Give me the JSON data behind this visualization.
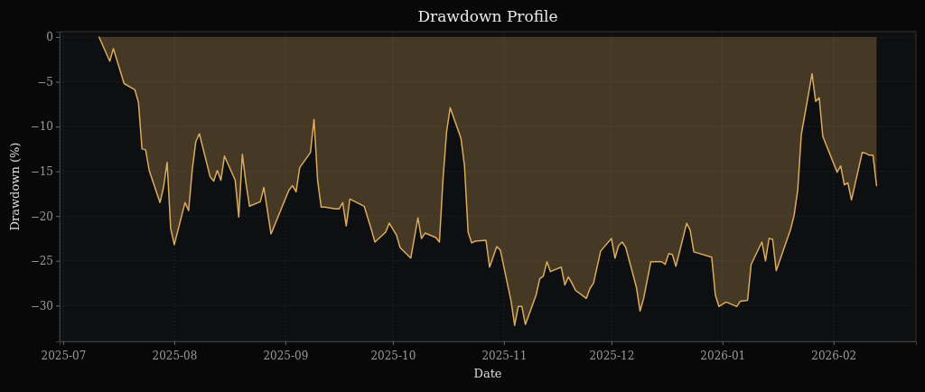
{
  "chart_data": {
    "type": "area",
    "title": "Drawdown Profile",
    "xlabel": "Date",
    "ylabel": "Drawdown (%)",
    "x": [
      "2025-07-11",
      "2025-07-14",
      "2025-07-15",
      "2025-07-18",
      "2025-07-21",
      "2025-07-22",
      "2025-07-23",
      "2025-07-24",
      "2025-07-25",
      "2025-07-28",
      "2025-07-29",
      "2025-07-30",
      "2025-07-31",
      "2025-08-01",
      "2025-08-04",
      "2025-08-05",
      "2025-08-06",
      "2025-08-07",
      "2025-08-08",
      "2025-08-11",
      "2025-08-12",
      "2025-08-13",
      "2025-08-14",
      "2025-08-15",
      "2025-08-18",
      "2025-08-19",
      "2025-08-20",
      "2025-08-21",
      "2025-08-22",
      "2025-08-25",
      "2025-08-26",
      "2025-08-28",
      "2025-09-02",
      "2025-09-03",
      "2025-09-04",
      "2025-09-05",
      "2025-09-08",
      "2025-09-09",
      "2025-09-10",
      "2025-09-11",
      "2025-09-12",
      "2025-09-15",
      "2025-09-16",
      "2025-09-17",
      "2025-09-18",
      "2025-09-19",
      "2025-09-23",
      "2025-09-24",
      "2025-09-25",
      "2025-09-26",
      "2025-09-29",
      "2025-09-30",
      "2025-10-02",
      "2025-10-03",
      "2025-10-06",
      "2025-10-08",
      "2025-10-09",
      "2025-10-10",
      "2025-10-13",
      "2025-10-14",
      "2025-10-15",
      "2025-10-16",
      "2025-10-17",
      "2025-10-20",
      "2025-10-21",
      "2025-10-22",
      "2025-10-23",
      "2025-10-24",
      "2025-10-27",
      "2025-10-28",
      "2025-10-30",
      "2025-10-31",
      "2025-11-03",
      "2025-11-04",
      "2025-11-05",
      "2025-11-06",
      "2025-11-07",
      "2025-11-10",
      "2025-11-11",
      "2025-11-12",
      "2025-11-13",
      "2025-11-14",
      "2025-11-17",
      "2025-11-18",
      "2025-11-19",
      "2025-11-20",
      "2025-11-21",
      "2025-11-24",
      "2025-11-25",
      "2025-11-26",
      "2025-11-28",
      "2025-12-01",
      "2025-12-02",
      "2025-12-03",
      "2025-12-04",
      "2025-12-05",
      "2025-12-08",
      "2025-12-09",
      "2025-12-10",
      "2025-12-12",
      "2025-12-15",
      "2025-12-16",
      "2025-12-17",
      "2025-12-18",
      "2025-12-19",
      "2025-12-22",
      "2025-12-23",
      "2025-12-24",
      "2025-12-29",
      "2025-12-30",
      "2025-12-31",
      "2026-01-02",
      "2026-01-05",
      "2026-01-06",
      "2026-01-08",
      "2026-01-09",
      "2026-01-12",
      "2026-01-13",
      "2026-01-14",
      "2026-01-15",
      "2026-01-16",
      "2026-01-20",
      "2026-01-21",
      "2026-01-22",
      "2026-01-23",
      "2026-01-26",
      "2026-01-27",
      "2026-01-28",
      "2026-01-29",
      "2026-02-02",
      "2026-02-03",
      "2026-02-04",
      "2026-02-05",
      "2026-02-06",
      "2026-02-09",
      "2026-02-10",
      "2026-02-11",
      "2026-02-12",
      "2026-02-13"
    ],
    "values": [
      0,
      -2.7,
      -1.3,
      -5.2,
      -5.9,
      -7.3,
      -12.5,
      -12.6,
      -14.9,
      -18.5,
      -16.8,
      -14.0,
      -21.4,
      -23.2,
      -18.5,
      -19.4,
      -14.9,
      -11.7,
      -10.8,
      -15.6,
      -16.1,
      -14.9,
      -16.0,
      -13.3,
      -16.0,
      -20.1,
      -13.1,
      -16.3,
      -18.9,
      -18.4,
      -16.8,
      -22.0,
      -17.1,
      -16.6,
      -17.3,
      -14.6,
      -12.9,
      -9.2,
      -16.0,
      -19.0,
      -19.0,
      -19.2,
      -19.2,
      -18.5,
      -21.1,
      -18.1,
      -18.9,
      -20.2,
      -21.5,
      -22.9,
      -21.8,
      -20.8,
      -22.1,
      -23.5,
      -24.7,
      -20.2,
      -22.5,
      -21.9,
      -22.4,
      -22.9,
      -15.9,
      -10.6,
      -7.9,
      -11.3,
      -14.4,
      -21.8,
      -23.0,
      -22.8,
      -22.7,
      -25.7,
      -23.4,
      -23.8,
      -29.5,
      -32.2,
      -30.1,
      -30.1,
      -32.1,
      -28.8,
      -27.0,
      -26.7,
      -25.1,
      -26.2,
      -25.7,
      -27.7,
      -26.8,
      -27.5,
      -28.3,
      -29.2,
      -28.1,
      -27.5,
      -23.9,
      -22.5,
      -24.7,
      -23.3,
      -22.9,
      -23.5,
      -28.0,
      -30.6,
      -29.2,
      -25.1,
      -25.1,
      -25.4,
      -24.2,
      -24.3,
      -25.6,
      -20.8,
      -21.6,
      -24.0,
      -24.6,
      -28.8,
      -30.1,
      -29.6,
      -30.1,
      -29.5,
      -29.4,
      -25.4,
      -22.9,
      -25.0,
      -22.5,
      -22.6,
      -26.1,
      -21.5,
      -19.9,
      -17.1,
      -10.9,
      -4.1,
      -7.2,
      -6.8,
      -11.1,
      -15.1,
      -14.4,
      -16.5,
      -16.3,
      -18.2,
      -12.9,
      -13.0,
      -13.2,
      -13.2,
      -16.6
    ],
    "color": "#dcab5c",
    "xlim": [
      "2025-06-30",
      "2026-02-24"
    ],
    "ylim": [
      -34,
      0.6
    ],
    "xticks": [
      "2025-07",
      "2025-08",
      "2025-09",
      "2025-10",
      "2025-11",
      "2025-12",
      "2026-01",
      "2026-02"
    ],
    "yticks": [
      0,
      -5,
      -10,
      -15,
      -20,
      -25,
      -30
    ],
    "grid": true
  }
}
